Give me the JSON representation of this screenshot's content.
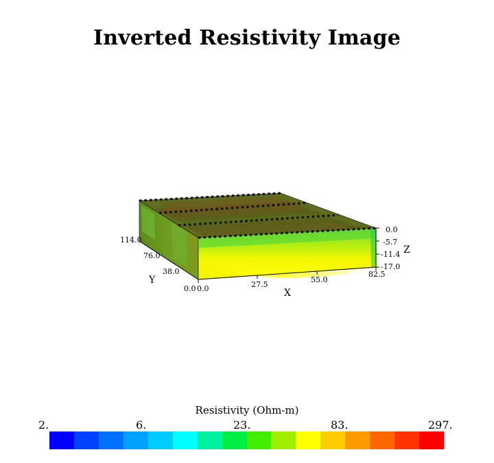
{
  "title": "Inverted Resistivity Image",
  "chart_data": {
    "type": "heatmap",
    "title": "Inverted Resistivity Image",
    "axes": {
      "x": {
        "label": "X",
        "ticks": [
          "0.0",
          "27.5",
          "55.0",
          "82.5"
        ],
        "range": [
          0,
          82.5
        ]
      },
      "y": {
        "label": "Y",
        "ticks": [
          "0.0",
          "38.0",
          "76.0",
          "114.0"
        ],
        "range": [
          0,
          114
        ]
      },
      "z": {
        "label": "Z",
        "ticks": [
          "0.0",
          "-5.7",
          "-11.4",
          "-17.0"
        ],
        "range": [
          -17,
          0
        ]
      }
    },
    "colorbar": {
      "label": "Resistivity (Ohm-m)",
      "tick_labels": [
        "2.",
        "6.",
        "23.",
        "83.",
        "297."
      ],
      "colors": [
        "#0000ff",
        "#0040ff",
        "#0070ff",
        "#00a0ff",
        "#00ccff",
        "#00ffff",
        "#00f0a0",
        "#00ee44",
        "#44ee00",
        "#a0ee00",
        "#ffff00",
        "#ffcc00",
        "#ff9900",
        "#ff6600",
        "#ff3300",
        "#ff0000"
      ]
    }
  }
}
